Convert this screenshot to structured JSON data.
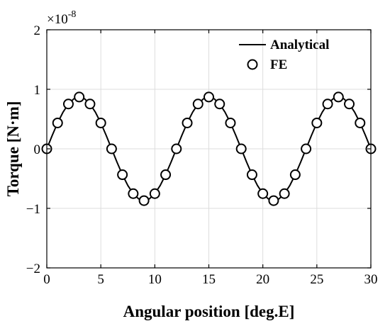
{
  "chart_data": {
    "type": "line",
    "title": "",
    "xlabel": "Angular position [deg.E]",
    "ylabel": "Torque [N·m]",
    "y_multiplier": {
      "base": "×10",
      "exponent": "-8"
    },
    "xlim": [
      0,
      30
    ],
    "ylim": [
      -2,
      2
    ],
    "xticks": [
      0,
      5,
      10,
      15,
      20,
      25,
      30
    ],
    "yticks": [
      -2,
      -1,
      0,
      1,
      2
    ],
    "xtick_labels": [
      "0",
      "5",
      "10",
      "15",
      "20",
      "25",
      "30"
    ],
    "ytick_labels": [
      "−2",
      "−1",
      "0",
      "1",
      "2"
    ],
    "grid": true,
    "legend_position": "top-right",
    "colors": {
      "line": "#000000",
      "marker_edge": "#000000",
      "grid": "#dddddd"
    },
    "series": [
      {
        "name": "Analytical",
        "style": "line",
        "x": [
          0,
          0.5,
          1,
          1.5,
          2,
          2.5,
          3,
          3.5,
          4,
          4.5,
          5,
          5.5,
          6,
          6.5,
          7,
          7.5,
          8,
          8.5,
          9,
          9.5,
          10,
          10.5,
          11,
          11.5,
          12,
          12.5,
          13,
          13.5,
          14,
          14.5,
          15,
          15.5,
          16,
          16.5,
          17,
          17.5,
          18,
          18.5,
          19,
          19.5,
          20,
          20.5,
          21,
          21.5,
          22,
          22.5,
          23,
          23.5,
          24,
          24.5,
          25,
          25.5,
          26,
          26.5,
          27,
          27.5,
          28,
          28.5,
          29,
          29.5,
          30
        ],
        "y": [
          0,
          0.225,
          0.435,
          0.615,
          0.753,
          0.84,
          0.87,
          0.84,
          0.753,
          0.615,
          0.435,
          0.225,
          0,
          -0.225,
          -0.435,
          -0.615,
          -0.753,
          -0.84,
          -0.87,
          -0.84,
          -0.753,
          -0.615,
          -0.435,
          -0.225,
          0,
          0.225,
          0.435,
          0.615,
          0.753,
          0.84,
          0.87,
          0.84,
          0.753,
          0.615,
          0.435,
          0.225,
          0,
          -0.225,
          -0.435,
          -0.615,
          -0.753,
          -0.84,
          -0.87,
          -0.84,
          -0.753,
          -0.615,
          -0.435,
          -0.225,
          0,
          0.225,
          0.435,
          0.615,
          0.753,
          0.84,
          0.87,
          0.84,
          0.753,
          0.615,
          0.435,
          0.225,
          0
        ]
      },
      {
        "name": "FE",
        "style": "marker",
        "x": [
          0,
          1,
          2,
          3,
          4,
          5,
          6,
          7,
          8,
          9,
          10,
          11,
          12,
          13,
          14,
          15,
          16,
          17,
          18,
          19,
          20,
          21,
          22,
          23,
          24,
          25,
          26,
          27,
          28,
          29,
          30
        ],
        "y": [
          0,
          0.435,
          0.753,
          0.87,
          0.753,
          0.435,
          0,
          -0.435,
          -0.753,
          -0.87,
          -0.753,
          -0.435,
          0,
          0.435,
          0.753,
          0.87,
          0.753,
          0.435,
          0,
          -0.435,
          -0.753,
          -0.87,
          -0.753,
          -0.435,
          0,
          0.435,
          0.753,
          0.87,
          0.753,
          0.435,
          0
        ]
      }
    ]
  }
}
